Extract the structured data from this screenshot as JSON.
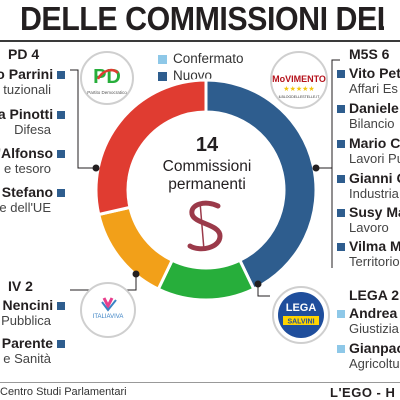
{
  "title": "IDENTI DELLE COMMISSIONI DEL SENA",
  "legend": {
    "confirmed_label": "Confermato",
    "new_label": "Nuovo",
    "confirmed_color": "#8ec8e8",
    "new_color": "#2e5d8e"
  },
  "center": {
    "count": "14",
    "line1": "Commissioni",
    "line2": "permanenti"
  },
  "parties": {
    "pd": {
      "header": "PD 4",
      "logo_text": "PD",
      "logo_subtext": "Partito Democratico",
      "entries": [
        {
          "name": "io Parrini",
          "desc": "tuzionali"
        },
        {
          "name": "a Pinotti",
          "desc": "Difesa"
        },
        {
          "name": "D'Alfonso",
          "desc": "e tesoro"
        },
        {
          "name": "o Stefano",
          "desc": "e dell'UE"
        }
      ]
    },
    "m5s": {
      "header": "M5S 6",
      "logo_text": "MoVIMENTO",
      "logo_stars": "★★★★★",
      "logo_subtext": "ILBLOGDELLESTELLE.IT",
      "entries": [
        {
          "name": "Vito Pet",
          "desc": "Affari Es"
        },
        {
          "name": "Daniele",
          "desc": "Bilancio"
        },
        {
          "name": "Mario Co",
          "desc": "Lavori Pu"
        },
        {
          "name": "Gianni G",
          "desc": "Industria"
        },
        {
          "name": "Susy Ma",
          "desc": "Lavoro"
        },
        {
          "name": "Vilma M",
          "desc": "Territorio"
        }
      ]
    },
    "iv": {
      "header": "IV 2",
      "logo_text": "ITALIAVIVA",
      "entries": [
        {
          "name": "o Nencini",
          "desc": "Pubblica"
        },
        {
          "name": "a Parente",
          "desc": "e Sanità"
        }
      ]
    },
    "lega": {
      "header": "LEGA 2",
      "logo_text": "LEGA",
      "logo_subtext": "SALVINI",
      "entries": [
        {
          "name": "Andrea C",
          "desc": "Giustizia"
        },
        {
          "name": "Gianpao",
          "desc": "Agricoltu"
        }
      ]
    }
  },
  "footer": {
    "source": "Centro Studi Parlamentari",
    "brand": "L'EGO - H"
  },
  "chart_data": {
    "type": "pie",
    "donut": true,
    "total": 14,
    "categories": [
      "M5S",
      "LEGA",
      "IV",
      "PD"
    ],
    "values": [
      6,
      2,
      2,
      4
    ],
    "colors": [
      "#2e5d8e",
      "#27ae3b",
      "#f2a019",
      "#e03c31"
    ]
  }
}
